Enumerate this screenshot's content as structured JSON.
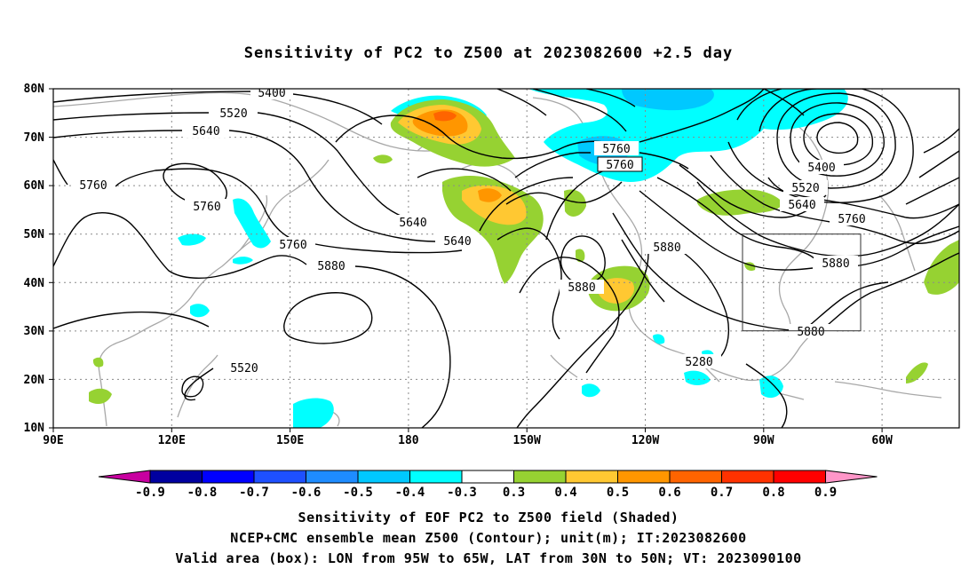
{
  "title": "Sensitivity of PC2 to Z500 at 2023082600 +2.5 day",
  "axes": {
    "lat_labels": [
      "80N",
      "70N",
      "60N",
      "50N",
      "40N",
      "30N",
      "20N",
      "10N"
    ],
    "lon_labels": [
      "90E",
      "120E",
      "150E",
      "180",
      "150W",
      "120W",
      "90W",
      "60W"
    ]
  },
  "contours": {
    "labels": [
      {
        "text": "5400",
        "id": "c5400a"
      },
      {
        "text": "5520",
        "id": "c5520a"
      },
      {
        "text": "5640",
        "id": "c5640a"
      },
      {
        "text": "5760",
        "id": "c5760a"
      },
      {
        "text": "5760",
        "id": "c5760b"
      },
      {
        "text": "5760",
        "id": "c5760c"
      },
      {
        "text": "5880",
        "id": "c5880a"
      },
      {
        "text": "5880",
        "id": "c5880b"
      },
      {
        "text": "5520",
        "id": "c5520b"
      },
      {
        "text": "5640",
        "id": "c5640b"
      },
      {
        "text": "5640",
        "id": "c5640c"
      },
      {
        "text": "5760",
        "id": "c5760d"
      },
      {
        "text": "5760",
        "id": "c5760e"
      },
      {
        "text": "5880",
        "id": "c5880c"
      },
      {
        "text": "5880",
        "id": "c5880d"
      },
      {
        "text": "5280",
        "id": "c5280a"
      },
      {
        "text": "5400",
        "id": "c5400b"
      },
      {
        "text": "5520",
        "id": "c5520c"
      },
      {
        "text": "5640",
        "id": "c5640d"
      },
      {
        "text": "5760",
        "id": "c5760f"
      },
      {
        "text": "5880",
        "id": "c5880e"
      }
    ]
  },
  "colorbar": {
    "labels": [
      "-0.9",
      "-0.8",
      "-0.7",
      "-0.6",
      "-0.5",
      "-0.4",
      "-0.3",
      "0.3",
      "0.4",
      "0.5",
      "0.6",
      "0.7",
      "0.8",
      "0.9"
    ],
    "colors": [
      "#0000a0",
      "#0000ff",
      "#1e50ff",
      "#1e8cff",
      "#00c8ff",
      "#00ffff",
      "#ffffff",
      "#96d232",
      "#ffc832",
      "#ff9600",
      "#ff6400",
      "#ff3200",
      "#ff0000"
    ],
    "low_end_color": "#c800a0",
    "high_end_color": "#ff96c8"
  },
  "captions": {
    "line1": "Sensitivity of EOF PC2 to Z500 field (Shaded)",
    "line2": "NCEP+CMC ensemble mean Z500 (Contour); unit(m); IT:2023082600",
    "line3": "Valid area (box): LON from 95W to 65W, LAT from 30N to 50N; VT: 2023090100"
  },
  "valid_box": {
    "lon_min": -95,
    "lon_max": -65,
    "lat_min": 30,
    "lat_max": 50
  }
}
